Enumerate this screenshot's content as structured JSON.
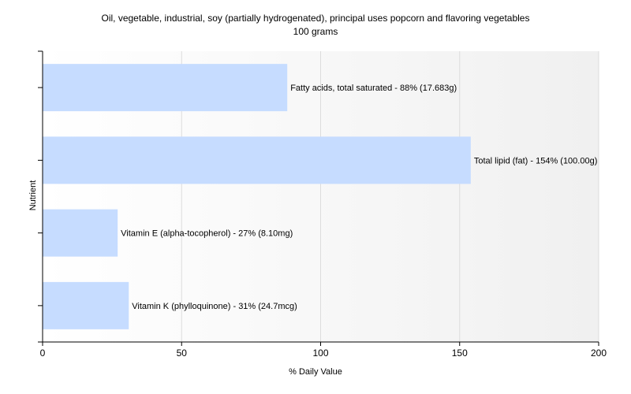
{
  "chart_data": {
    "type": "bar",
    "orientation": "horizontal",
    "title": "Oil, vegetable, industrial, soy (partially hydrogenated), principal uses popcorn and flavoring vegetables",
    "subtitle": "100 grams",
    "xlabel": "% Daily Value",
    "ylabel": "Nutrient",
    "xlim": [
      0,
      200
    ],
    "xticks": [
      0,
      50,
      100,
      150,
      200
    ],
    "grid": true,
    "bar_color": "#c6dcff",
    "categories": [
      "Fatty acids, total saturated",
      "Total lipid (fat)",
      "Vitamin E (alpha-tocopherol)",
      "Vitamin K (phylloquinone)"
    ],
    "values": [
      88,
      154,
      27,
      31
    ],
    "data_labels": [
      "Fatty acids, total saturated - 88% (17.683g)",
      "Total lipid (fat) - 154% (100.00g)",
      "Vitamin E (alpha-tocopherol) - 27% (8.10mg)",
      "Vitamin K (phylloquinone) - 31% (24.7mcg)"
    ]
  }
}
